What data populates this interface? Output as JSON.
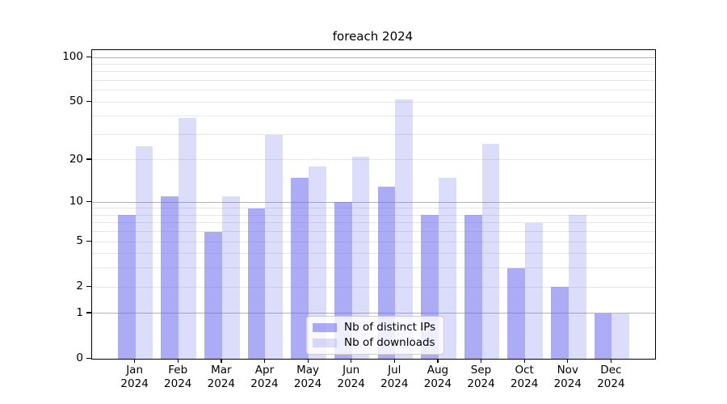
{
  "title": "foreach 2024",
  "chart_data": {
    "type": "bar",
    "scale": "log1p",
    "ylim": [
      0,
      112
    ],
    "y_ticks": [
      0,
      1,
      2,
      5,
      10,
      20,
      50,
      100
    ],
    "y_major_grid": [
      1,
      10,
      100
    ],
    "y_minor_grid": [
      2,
      3,
      4,
      5,
      6,
      7,
      8,
      9,
      20,
      30,
      40,
      50,
      60,
      70,
      80,
      90
    ],
    "x_months": [
      "Jan",
      "Feb",
      "Mar",
      "Apr",
      "May",
      "Jun",
      "Jul",
      "Aug",
      "Sep",
      "Oct",
      "Nov",
      "Dec"
    ],
    "x_year": "2024",
    "series": [
      {
        "name": "Nb of distinct IPs",
        "values": [
          8,
          11,
          6,
          9,
          15,
          10,
          13,
          8,
          8,
          3,
          2,
          1
        ],
        "alpha": 0.55
      },
      {
        "name": "Nb of downloads",
        "values": [
          25,
          39,
          11,
          30,
          18,
          21,
          52,
          15,
          26,
          7,
          8,
          1
        ],
        "alpha": 0.23
      }
    ],
    "colors": {
      "bar_base": "#6666ee",
      "grid_major": "#b3b3b3",
      "grid_minor": "#e7e7e7",
      "axis": "#000000",
      "legend_border": "#cccccc"
    },
    "legend_position": "lower center"
  }
}
